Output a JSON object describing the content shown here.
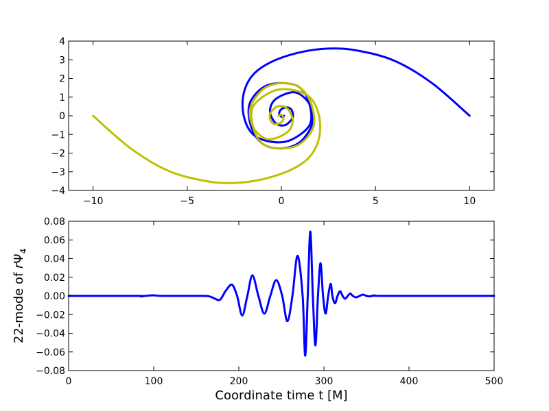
{
  "chart_data": [
    {
      "type": "line",
      "title": "",
      "xlabel": "",
      "ylabel": "",
      "xlim": [
        -11.3,
        11.3
      ],
      "ylim": [
        -4,
        4
      ],
      "xticks": [
        -10,
        -5,
        0,
        5,
        10
      ],
      "xtick_labels": [
        "−10",
        "−5",
        "0",
        "5",
        "10"
      ],
      "yticks": [
        4,
        3,
        2,
        1,
        0,
        -1,
        -2,
        -3,
        -4
      ],
      "ytick_labels": [
        "4",
        "3",
        "2",
        "1",
        "0",
        "−1",
        "−2",
        "−3",
        "−4"
      ],
      "grid": false,
      "legend": "none",
      "series": [
        {
          "color": "#0000ff",
          "points": [
            [
              10,
              0
            ],
            [
              8,
              1.75
            ],
            [
              6,
              2.95
            ],
            [
              4,
              3.5
            ],
            [
              2.5,
              3.6
            ],
            [
              1,
              3.4
            ],
            [
              -0.5,
              2.9
            ],
            [
              -1.5,
              2.2
            ],
            [
              -2,
              1.2
            ],
            [
              -2,
              0
            ],
            [
              -1.5,
              -1
            ],
            [
              -0.5,
              -1.4
            ],
            [
              0.5,
              -1.3
            ],
            [
              1.5,
              -0.5
            ],
            [
              1.5,
              0.6
            ],
            [
              1,
              1.5
            ],
            [
              0,
              1.75
            ],
            [
              -1,
              1.5
            ],
            [
              -1.7,
              0.6
            ],
            [
              -1.6,
              -0.6
            ],
            [
              -1,
              -1.5
            ],
            [
              0,
              -1.75
            ],
            [
              1,
              -1.4
            ],
            [
              1.65,
              -0.4
            ],
            [
              1.5,
              0.6
            ],
            [
              0.9,
              1.2
            ],
            [
              0.3,
              1.2
            ],
            [
              -0.4,
              0.8
            ],
            [
              -0.6,
              0.2
            ],
            [
              -0.3,
              -0.4
            ],
            [
              0.2,
              -0.5
            ],
            [
              0.6,
              -0.1
            ],
            [
              0.55,
              0.3
            ],
            [
              0.3,
              0.45
            ],
            [
              0,
              0.35
            ],
            [
              -0.12,
              0.12
            ],
            [
              0,
              -0.05
            ],
            [
              0.15,
              0
            ]
          ]
        },
        {
          "color": "#bfbf00",
          "points": [
            [
              -10,
              0
            ],
            [
              -8,
              -1.75
            ],
            [
              -6,
              -2.95
            ],
            [
              -4,
              -3.5
            ],
            [
              -2.5,
              -3.6
            ],
            [
              -1,
              -3.4
            ],
            [
              0.5,
              -2.9
            ],
            [
              1.5,
              -2.2
            ],
            [
              2,
              -1.2
            ],
            [
              2,
              0
            ],
            [
              1.5,
              1
            ],
            [
              0.5,
              1.4
            ],
            [
              -0.5,
              1.3
            ],
            [
              -1.5,
              0.5
            ],
            [
              -1.5,
              -0.6
            ],
            [
              -1,
              -1.5
            ],
            [
              0,
              -1.75
            ],
            [
              1,
              -1.5
            ],
            [
              1.7,
              -0.6
            ],
            [
              1.6,
              0.6
            ],
            [
              1,
              1.5
            ],
            [
              0,
              1.75
            ],
            [
              -1,
              1.4
            ],
            [
              -1.65,
              0.4
            ],
            [
              -1.5,
              -0.6
            ],
            [
              -0.9,
              -1.2
            ],
            [
              -0.3,
              -1.2
            ],
            [
              0.4,
              -0.8
            ],
            [
              0.6,
              -0.2
            ],
            [
              0.3,
              0.4
            ],
            [
              -0.2,
              0.5
            ],
            [
              -0.6,
              0.1
            ],
            [
              -0.55,
              -0.3
            ],
            [
              -0.3,
              -0.45
            ],
            [
              0,
              -0.35
            ],
            [
              0.12,
              -0.12
            ],
            [
              0,
              0.05
            ],
            [
              -0.15,
              0
            ]
          ]
        }
      ]
    },
    {
      "type": "line",
      "title": "",
      "xlabel": "Coordinate time t [M]",
      "ylabel_prefix": "22-mode of ",
      "ylabel_math": "r",
      "ylabel_psi": "Ψ",
      "ylabel_sub": "4",
      "xlim": [
        0,
        500
      ],
      "ylim": [
        -0.08,
        0.08
      ],
      "xticks": [
        0,
        100,
        200,
        300,
        400,
        500
      ],
      "xtick_labels": [
        "0",
        "100",
        "200",
        "300",
        "400",
        "500"
      ],
      "yticks": [
        0.08,
        0.06,
        0.04,
        0.02,
        0.0,
        -0.02,
        -0.04,
        -0.06,
        -0.08
      ],
      "ytick_labels": [
        "0.08",
        "0.06",
        "0.04",
        "0.02",
        "0.00",
        "−0.02",
        "−0.04",
        "−0.06",
        "−0.08"
      ],
      "grid": false,
      "legend": "none",
      "series": [
        {
          "color": "#0000ff",
          "points": [
            [
              0,
              0
            ],
            [
              80,
              0
            ],
            [
              85,
              -0.0006
            ],
            [
              90,
              0
            ],
            [
              100,
              0.0006
            ],
            [
              110,
              0
            ],
            [
              150,
              0
            ],
            [
              165,
              -0.0004
            ],
            [
              172,
              -0.003
            ],
            [
              178,
              -0.004
            ],
            [
              185,
              0.006
            ],
            [
              192,
              0.012
            ],
            [
              198,
              0
            ],
            [
              204,
              -0.021
            ],
            [
              210,
              0
            ],
            [
              216,
              0.022
            ],
            [
              223,
              0
            ],
            [
              230,
              -0.019
            ],
            [
              237,
              0
            ],
            [
              244,
              0.017
            ],
            [
              251,
              0
            ],
            [
              257,
              -0.027
            ],
            [
              263,
              0
            ],
            [
              269,
              0.043
            ],
            [
              275,
              0
            ],
            [
              278,
              -0.064
            ],
            [
              281,
              0
            ],
            [
              284,
              0.069
            ],
            [
              287,
              0
            ],
            [
              290,
              -0.053
            ],
            [
              293,
              0
            ],
            [
              296,
              0.035
            ],
            [
              299,
              0
            ],
            [
              302,
              -0.019
            ],
            [
              305,
              0
            ],
            [
              308,
              0.013
            ],
            [
              310,
              0
            ],
            [
              313,
              -0.008
            ],
            [
              316,
              0
            ],
            [
              319,
              0.005
            ],
            [
              322,
              0
            ],
            [
              325,
              -0.003
            ],
            [
              328,
              0
            ],
            [
              331,
              0.0025
            ],
            [
              334,
              0
            ],
            [
              338,
              -0.0015
            ],
            [
              342,
              0
            ],
            [
              346,
              0.0015
            ],
            [
              350,
              0
            ],
            [
              354,
              -0.0005
            ],
            [
              360,
              0.0005
            ],
            [
              370,
              0
            ],
            [
              500,
              0
            ]
          ]
        }
      ]
    }
  ]
}
